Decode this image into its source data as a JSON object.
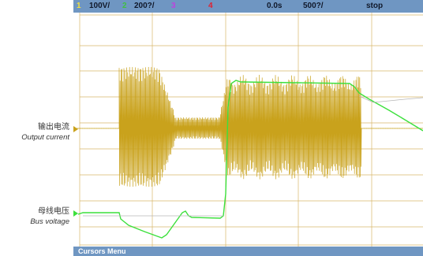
{
  "status": {
    "ch1_num": "1",
    "ch1_scale": "100V/",
    "ch2_num": "2",
    "ch2_scale": "200?/",
    "ch3_num": "3",
    "ch4_num": "4",
    "time_pos": "0.0s",
    "time_scale": "500?/",
    "run_state": "stop"
  },
  "labels": {
    "output_current_cn": "输出电流",
    "output_current_en": "Output current",
    "bus_voltage_cn": "母线电压",
    "bus_voltage_en": "Bus voltage"
  },
  "menu": {
    "cursors_label": "Cursors Menu"
  },
  "colors": {
    "status_bar": "#6f96c2",
    "grid": "#d8b66a",
    "current_trace": "#c9a21c",
    "voltage_trace": "#3ce03c",
    "ch1_color": "#f0e040",
    "ch2_color": "#40c040",
    "ch3_color": "#c040e0",
    "ch4_color": "#e02030"
  },
  "icons": {
    "ch1_marker": "ch1-ground-marker-icon",
    "ch2_marker": "ch2-ground-marker-icon"
  }
}
